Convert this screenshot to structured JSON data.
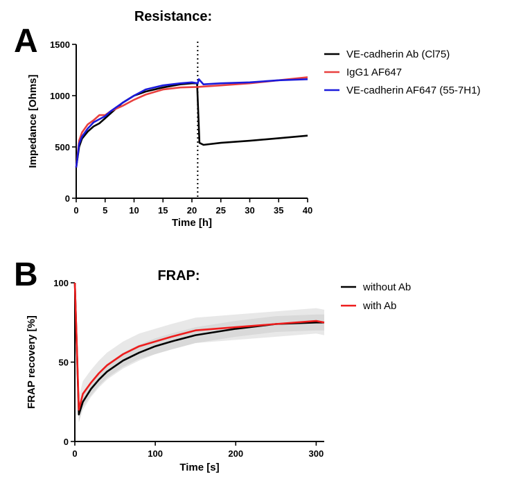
{
  "chart_data": [
    {
      "panel": "A",
      "type": "line",
      "title": "Resistance:",
      "xlabel": "Time [h]",
      "ylabel": "Impedance [Ohms]",
      "xlim": [
        0,
        40
      ],
      "ylim": [
        0,
        1500
      ],
      "xticks": [
        0,
        5,
        10,
        15,
        20,
        25,
        30,
        35,
        40
      ],
      "yticks": [
        0,
        500,
        1000,
        1500
      ],
      "vline_x": 21,
      "legend_position": "right",
      "series": [
        {
          "name": "VE-cadherin Ab (Cl75)",
          "color": "#000000",
          "x": [
            0,
            0.5,
            1,
            2,
            3,
            4,
            5,
            6,
            7,
            8,
            10,
            12,
            15,
            18,
            20,
            20.9,
            20.95,
            21.3,
            22,
            25,
            30,
            35,
            40
          ],
          "y": [
            300,
            500,
            580,
            650,
            700,
            730,
            780,
            830,
            880,
            930,
            1000,
            1040,
            1080,
            1110,
            1120,
            1120,
            1050,
            540,
            520,
            540,
            560,
            585,
            610
          ]
        },
        {
          "name": "IgG1 AF647",
          "color": "#e8403f",
          "x": [
            0,
            0.5,
            1,
            2,
            3,
            4,
            5,
            6,
            8,
            10,
            12,
            15,
            18,
            21,
            25,
            30,
            35,
            40
          ],
          "y": [
            300,
            560,
            640,
            720,
            760,
            810,
            810,
            850,
            900,
            960,
            1010,
            1060,
            1080,
            1085,
            1100,
            1120,
            1150,
            1180
          ]
        },
        {
          "name": "VE-cadherin AF647 (55-7H1)",
          "color": "#1a1adb",
          "x": [
            0,
            0.5,
            1,
            2,
            3,
            4,
            5,
            6,
            8,
            10,
            12,
            15,
            18,
            20,
            21,
            21.2,
            22,
            25,
            30,
            35,
            40
          ],
          "y": [
            300,
            530,
            600,
            680,
            740,
            770,
            800,
            850,
            930,
            1000,
            1060,
            1100,
            1120,
            1130,
            1120,
            1160,
            1110,
            1120,
            1130,
            1150,
            1160
          ]
        }
      ]
    },
    {
      "panel": "B",
      "type": "line",
      "title": "FRAP:",
      "xlabel": "Time [s]",
      "ylabel": "FRAP recovery [%]",
      "xlim": [
        0,
        310
      ],
      "ylim": [
        0,
        100
      ],
      "xticks": [
        0,
        100,
        200,
        300
      ],
      "yticks": [
        0,
        50,
        100
      ],
      "legend_position": "top-right",
      "series": [
        {
          "name": "without Ab",
          "color": "#000000",
          "x": [
            0,
            5,
            10,
            20,
            30,
            40,
            60,
            80,
            100,
            120,
            150,
            200,
            250,
            300,
            310
          ],
          "y": [
            100,
            17,
            25,
            33,
            39,
            44,
            51,
            56,
            60,
            63,
            67,
            71,
            74,
            75,
            75
          ],
          "error": 5
        },
        {
          "name": "with Ab",
          "color": "#ee1c1c",
          "x": [
            0,
            5,
            10,
            20,
            30,
            40,
            60,
            80,
            100,
            120,
            150,
            200,
            250,
            300,
            310
          ],
          "y": [
            100,
            20,
            30,
            37,
            43,
            48,
            55,
            60,
            63,
            66,
            70,
            72,
            74,
            76,
            75
          ],
          "error": 8
        }
      ]
    }
  ]
}
